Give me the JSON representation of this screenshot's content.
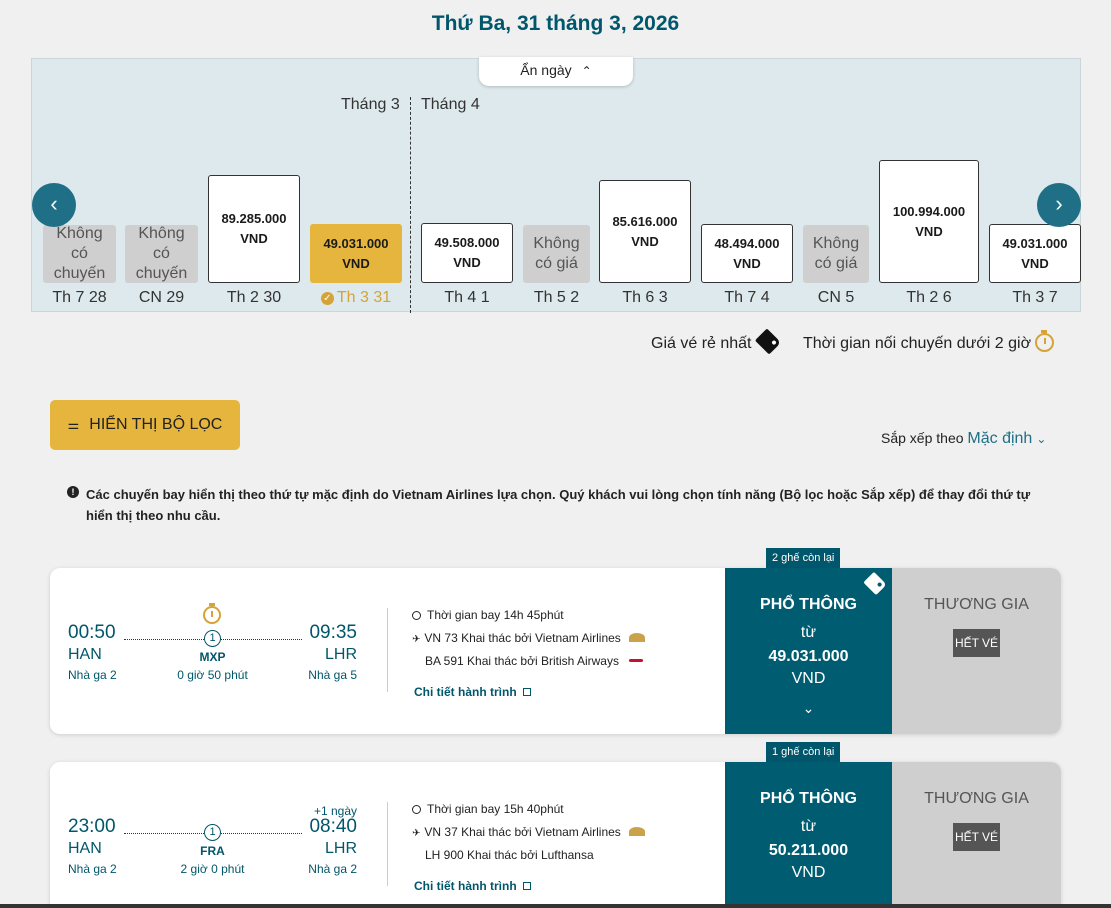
{
  "title": "Thứ Ba, 31 tháng 3, 2026",
  "calendar": {
    "hide_label": "Ẩn ngày",
    "month_left": "Tháng 3",
    "month_right": "Tháng 4",
    "days": [
      {
        "label": "Th 7 28",
        "line1": "Không",
        "line2": "có",
        "line3": "chuyến",
        "status": "no-flight"
      },
      {
        "label": "CN 29",
        "line1": "Không",
        "line2": "có",
        "line3": "chuyến",
        "status": "no-flight"
      },
      {
        "label": "Th 2 30",
        "price": "89.285.000",
        "currency": "VND",
        "status": "price"
      },
      {
        "label": "Th 3 31",
        "price": "49.031.000",
        "currency": "VND",
        "status": "selected"
      },
      {
        "label": "Th 4 1",
        "price": "49.508.000",
        "currency": "VND",
        "status": "price"
      },
      {
        "label": "Th 5 2",
        "line1": "Không",
        "line2": "có giá",
        "status": "no-price"
      },
      {
        "label": "Th 6 3",
        "price": "85.616.000",
        "currency": "VND",
        "status": "price"
      },
      {
        "label": "Th 7 4",
        "price": "48.494.000",
        "currency": "VND",
        "status": "price"
      },
      {
        "label": "CN 5",
        "line1": "Không",
        "line2": "có giá",
        "status": "no-price"
      },
      {
        "label": "Th 2 6",
        "price": "100.994.000",
        "currency": "VND",
        "status": "price"
      },
      {
        "label": "Th 3 7",
        "price": "49.031.000",
        "currency": "VND",
        "status": "price"
      }
    ]
  },
  "legend": {
    "cheapest": "Giá vé rẻ nhất",
    "short_connection": "Thời gian nối chuyến dưới 2 giờ"
  },
  "filter": {
    "label": "HIỂN THỊ BỘ LỌC"
  },
  "sort": {
    "label": "Sắp xếp theo",
    "value": "Mặc định"
  },
  "notice": "Các chuyến bay hiển thị theo thứ tự mặc định do Vietnam Airlines lựa chọn. Quý khách vui lòng chọn tính năng (Bộ lọc hoặc Sắp xếp) để thay đổi thứ tự hiển thị theo nhu cầu.",
  "flights": [
    {
      "seats_left": "2 ghế còn lại",
      "dep_time": "00:50",
      "dep_airport": "HAN",
      "dep_terminal": "Nhà ga 2",
      "arr_time": "09:35",
      "arr_airport": "LHR",
      "arr_terminal": "Nhà ga 5",
      "plus_day": "",
      "stops": "1",
      "stop_code": "MXP",
      "stop_duration": "0 giờ 50 phút",
      "duration": "Thời gian bay 14h 45phút",
      "segment1": "VN 73 Khai thác bởi Vietnam Airlines",
      "segment2": "BA 591 Khai thác bởi British Airways",
      "detail_link": "Chi tiết hành trình",
      "economy": {
        "title": "PHỔ THÔNG",
        "from": "từ",
        "price": "49.031.000",
        "currency": "VND"
      },
      "business": {
        "title": "THƯƠNG GIA",
        "status": "HẾT VÉ"
      }
    },
    {
      "seats_left": "1 ghế còn lại",
      "dep_time": "23:00",
      "dep_airport": "HAN",
      "dep_terminal": "Nhà ga 2",
      "arr_time": "08:40",
      "arr_airport": "LHR",
      "arr_terminal": "Nhà ga 2",
      "plus_day": "+1 ngày",
      "stops": "1",
      "stop_code": "FRA",
      "stop_duration": "2 giờ 0 phút",
      "duration": "Thời gian bay 15h 40phút",
      "segment1": "VN 37 Khai thác bởi Vietnam Airlines",
      "segment2": "LH 900 Khai thác bởi Lufthansa",
      "detail_link": "Chi tiết hành trình",
      "economy": {
        "title": "PHỔ THÔNG",
        "from": "từ",
        "price": "50.211.000",
        "currency": "VND"
      },
      "business": {
        "title": "THƯƠNG GIA",
        "status": "HẾT VÉ"
      }
    }
  ]
}
